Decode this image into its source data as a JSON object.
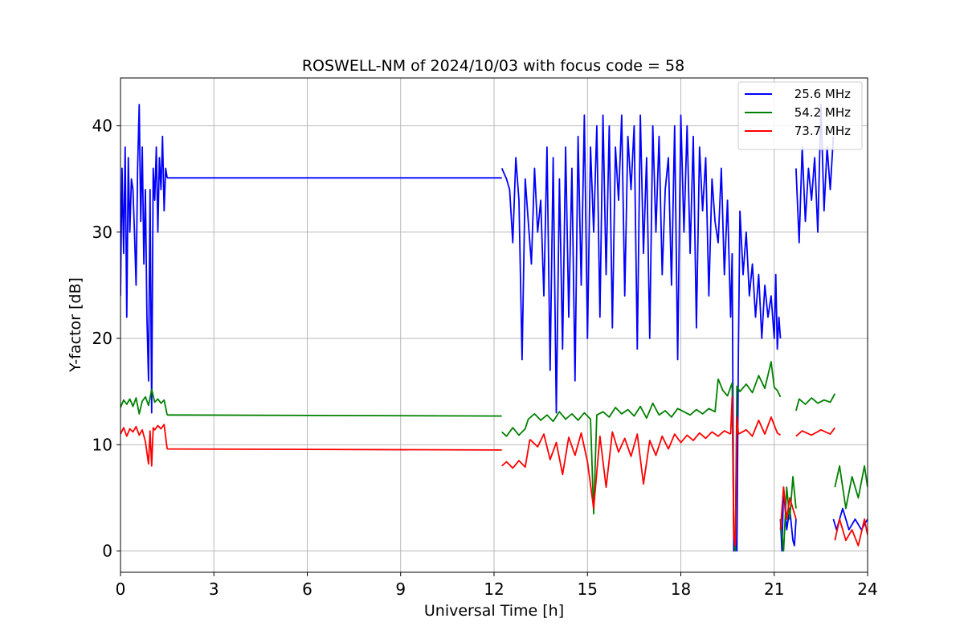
{
  "chart_data": {
    "type": "line",
    "title": "ROSWELL-NM of 2024/10/03 with focus code = 58",
    "xlabel": "Universal Time [h]",
    "ylabel": "Y-factor [dB]",
    "xlim": [
      0,
      24
    ],
    "ylim": [
      -2,
      44.5
    ],
    "xticks": [
      0,
      3,
      6,
      9,
      12,
      15,
      18,
      21,
      24
    ],
    "xtick_labels": [
      "0",
      "3",
      "6",
      "9",
      "12",
      "15",
      "18",
      "21",
      "24"
    ],
    "yticks": [
      0,
      10,
      20,
      30,
      40
    ],
    "ytick_labels": [
      "0",
      "10",
      "20",
      "30",
      "40"
    ],
    "grid": true,
    "legend_position": "top-right",
    "series": [
      {
        "name": "25.6 MHz",
        "color": "#0000ff",
        "segments": [
          {
            "x": [
              0.0,
              0.05,
              0.1,
              0.15,
              0.2,
              0.25,
              0.3,
              0.35,
              0.4,
              0.45,
              0.5,
              0.55,
              0.6,
              0.65,
              0.7,
              0.75,
              0.8,
              0.85,
              0.9,
              0.95,
              1.0,
              1.05,
              1.1,
              1.15,
              1.2,
              1.25,
              1.3,
              1.35,
              1.4,
              1.45,
              1.5
            ],
            "y": [
              24,
              36,
              28,
              38,
              22,
              37,
              30,
              35,
              34,
              30,
              25,
              36,
              42,
              31,
              38,
              27,
              34,
              22,
              16,
              34,
              13,
              36,
              33,
              38,
              30,
              37,
              34,
              39,
              32,
              36,
              35.1
            ]
          },
          {
            "x": [
              1.5,
              12.25
            ],
            "y": [
              35.1,
              35.1
            ]
          },
          {
            "x": [
              12.25,
              12.4,
              12.5,
              12.6,
              12.7,
              12.8,
              12.9,
              13.0,
              13.1,
              13.2,
              13.3,
              13.4,
              13.5,
              13.6,
              13.7,
              13.8,
              13.9,
              14.0,
              14.1,
              14.2,
              14.3,
              14.4,
              14.5,
              14.6,
              14.7,
              14.8,
              14.9,
              15.0,
              15.1,
              15.2,
              15.3,
              15.4,
              15.5,
              15.6,
              15.7,
              15.8,
              15.9,
              16.0,
              16.1,
              16.2,
              16.3,
              16.4,
              16.5,
              16.6,
              16.7,
              16.8,
              16.9,
              17.0,
              17.1,
              17.2,
              17.3,
              17.4,
              17.5,
              17.6,
              17.7,
              17.8,
              17.9,
              18.0,
              18.1,
              18.2,
              18.3,
              18.4,
              18.5,
              18.6,
              18.7,
              18.8,
              18.9,
              19.0,
              19.1,
              19.2,
              19.3,
              19.4,
              19.5,
              19.6,
              19.65
            ],
            "y": [
              36,
              35,
              34,
              29,
              37,
              33,
              18,
              35,
              31,
              27,
              36,
              30,
              33,
              24,
              38,
              17,
              37,
              13,
              35,
              19,
              38,
              22,
              36,
              16,
              39,
              25,
              41,
              20,
              38,
              30,
              40,
              22,
              41,
              26,
              40,
              21,
              38,
              33,
              41,
              24,
              39,
              34,
              40,
              19,
              41,
              28,
              37,
              20,
              40,
              30,
              39,
              26,
              34,
              37,
              25,
              40,
              18,
              41,
              30,
              40,
              28,
              39,
              21,
              38,
              32,
              37,
              24,
              35,
              31,
              29,
              36,
              26,
              33,
              22,
              28
            ]
          },
          {
            "x": [
              19.65,
              19.7,
              19.75,
              19.8,
              19.85,
              19.9
            ],
            "y": [
              28,
              0,
              1,
              0,
              19,
              32
            ]
          },
          {
            "x": [
              19.9,
              20.0,
              20.1,
              20.2,
              20.3,
              20.4,
              20.5,
              20.6,
              20.7,
              20.8,
              20.9,
              21.0,
              21.05,
              21.1,
              21.15,
              21.2
            ],
            "y": [
              32,
              26,
              30,
              24,
              27,
              22,
              26,
              20,
              25,
              22,
              24,
              20,
              26,
              19,
              22,
              20
            ]
          },
          {
            "x": [
              21.2,
              21.25,
              21.3,
              21.4,
              21.5,
              21.6,
              21.65,
              21.7
            ],
            "y": [
              3,
              0,
              6,
              2,
              4,
              1,
              0.5,
              3
            ]
          },
          {
            "x": [
              21.7,
              21.8,
              21.9,
              22.0,
              22.1,
              22.2,
              22.3,
              22.4,
              22.5,
              22.6,
              22.7,
              22.8,
              22.9
            ],
            "y": [
              36,
              29,
              38,
              31,
              36,
              33,
              37,
              30,
              42,
              32,
              38,
              34,
              39
            ]
          },
          {
            "x": [
              22.9,
              23.0,
              23.2,
              23.4,
              23.6,
              23.8,
              24.0
            ],
            "y": [
              3,
              2,
              4,
              2,
              3,
              2,
              3
            ]
          }
        ]
      },
      {
        "name": "54.2 MHz",
        "color": "#008000",
        "segments": [
          {
            "x": [
              0.0,
              0.1,
              0.2,
              0.3,
              0.4,
              0.5,
              0.6,
              0.7,
              0.8,
              0.9,
              1.0,
              1.1,
              1.2,
              1.3,
              1.4,
              1.5
            ],
            "y": [
              13.5,
              14.2,
              13.8,
              14.3,
              13.6,
              14.4,
              12.9,
              14.1,
              14.5,
              13.7,
              15.2,
              14.0,
              14.3,
              13.9,
              14.2,
              12.8
            ]
          },
          {
            "x": [
              1.5,
              12.25
            ],
            "y": [
              12.8,
              12.7
            ]
          },
          {
            "x": [
              12.25,
              12.4,
              12.6,
              12.8,
              13.0,
              13.1,
              13.3,
              13.5,
              13.7,
              13.9,
              14.1,
              14.3,
              14.5,
              14.7,
              14.9,
              15.1,
              15.2,
              15.3,
              15.5,
              15.7,
              15.9,
              16.1,
              16.3,
              16.5,
              16.7,
              16.9,
              17.1,
              17.3,
              17.5,
              17.7,
              17.9,
              18.1,
              18.3,
              18.5,
              18.7,
              18.9,
              19.1,
              19.2
            ],
            "y": [
              11.2,
              10.8,
              11.6,
              10.9,
              11.5,
              12.4,
              12.9,
              12.3,
              12.8,
              12.2,
              13.1,
              12.4,
              12.9,
              12.3,
              13.0,
              12.4,
              3.5,
              12.8,
              13.1,
              12.6,
              13.5,
              12.9,
              13.3,
              12.7,
              13.6,
              12.5,
              13.9,
              12.8,
              13.2,
              12.6,
              13.4,
              13.1,
              12.8,
              13.3,
              12.9,
              13.4,
              13.1,
              16.2
            ]
          },
          {
            "x": [
              19.2,
              19.35,
              19.5,
              19.65,
              19.7,
              19.75,
              19.8,
              19.9,
              20.1,
              20.3,
              20.5,
              20.7,
              20.9,
              21.0,
              21.1,
              21.2
            ],
            "y": [
              16.2,
              15.1,
              14.6,
              15.8,
              2,
              0,
              15.5,
              15.0,
              15.7,
              14.9,
              16.5,
              15.3,
              17.8,
              15.4,
              15.1,
              14.5
            ]
          },
          {
            "x": [
              21.2,
              21.3,
              21.4,
              21.5,
              21.6,
              21.7
            ],
            "y": [
              3,
              0,
              6,
              3,
              7,
              4
            ]
          },
          {
            "x": [
              21.7,
              21.8,
              22.0,
              22.2,
              22.4,
              22.6,
              22.8,
              22.95
            ],
            "y": [
              13.2,
              14.3,
              13.8,
              14.4,
              13.9,
              14.2,
              14.0,
              14.8
            ]
          },
          {
            "x": [
              22.95,
              23.1,
              23.3,
              23.5,
              23.7,
              23.9,
              24.0
            ],
            "y": [
              6,
              8,
              4,
              7,
              5,
              8,
              6
            ]
          }
        ]
      },
      {
        "name": "73.7 MHz",
        "color": "#ff0000",
        "segments": [
          {
            "x": [
              0.0,
              0.1,
              0.2,
              0.3,
              0.4,
              0.5,
              0.6,
              0.7,
              0.8,
              0.9,
              0.95,
              1.0,
              1.05,
              1.1,
              1.2,
              1.3,
              1.4,
              1.5
            ],
            "y": [
              11.0,
              11.6,
              10.8,
              11.5,
              11.2,
              11.7,
              10.9,
              11.4,
              10.3,
              8.2,
              11.3,
              8.0,
              11.6,
              11.4,
              11.8,
              11.5,
              11.9,
              9.6
            ]
          },
          {
            "x": [
              1.5,
              12.25
            ],
            "y": [
              9.6,
              9.5
            ]
          },
          {
            "x": [
              12.25,
              12.4,
              12.6,
              12.8,
              13.0,
              13.15
            ],
            "y": [
              8.0,
              8.4,
              7.8,
              8.5,
              7.9,
              10.5
            ]
          },
          {
            "x": [
              13.15,
              13.4,
              13.6,
              13.8,
              14.0,
              14.2,
              14.4,
              14.6,
              14.8,
              15.0,
              15.2,
              15.4,
              15.6,
              15.8,
              16.0,
              16.2,
              16.4,
              16.6,
              16.8,
              17.0,
              17.2,
              17.4,
              17.6,
              17.8,
              18.0,
              18.2,
              18.4,
              18.6,
              18.8,
              19.0,
              19.2,
              19.4,
              19.6
            ],
            "y": [
              10.5,
              9.8,
              11.0,
              8.6,
              10.2,
              7.2,
              10.7,
              9.0,
              11.1,
              8.4,
              4.0,
              10.8,
              6.0,
              11.2,
              9.3,
              10.6,
              8.9,
              11.0,
              6.3,
              10.4,
              9.0,
              10.8,
              9.6,
              11.0,
              10.2,
              10.9,
              10.4,
              11.1,
              10.6,
              11.2,
              10.8,
              11.3,
              11.0
            ]
          },
          {
            "x": [
              19.6,
              19.65,
              19.7,
              19.75,
              19.8,
              19.85
            ],
            "y": [
              11.0,
              14.5,
              1.5,
              0.5,
              12.6,
              11.0
            ]
          },
          {
            "x": [
              19.85,
              20.1,
              20.3,
              20.5,
              20.7,
              20.9,
              21.1,
              21.2
            ],
            "y": [
              11.0,
              11.4,
              10.8,
              12.3,
              11.0,
              12.6,
              11.1,
              10.9
            ]
          },
          {
            "x": [
              21.2,
              21.3,
              21.4,
              21.5,
              21.6,
              21.7
            ],
            "y": [
              2,
              6,
              3,
              5,
              4,
              3
            ]
          },
          {
            "x": [
              21.7,
              21.9,
              22.2,
              22.5,
              22.8,
              22.95
            ],
            "y": [
              10.8,
              11.3,
              10.9,
              11.4,
              11.0,
              11.6
            ]
          },
          {
            "x": [
              22.95,
              23.1,
              23.3,
              23.5,
              23.7,
              23.9,
              24.0
            ],
            "y": [
              1,
              3,
              1,
              2,
              0.5,
              3,
              1.5
            ]
          }
        ]
      }
    ]
  }
}
